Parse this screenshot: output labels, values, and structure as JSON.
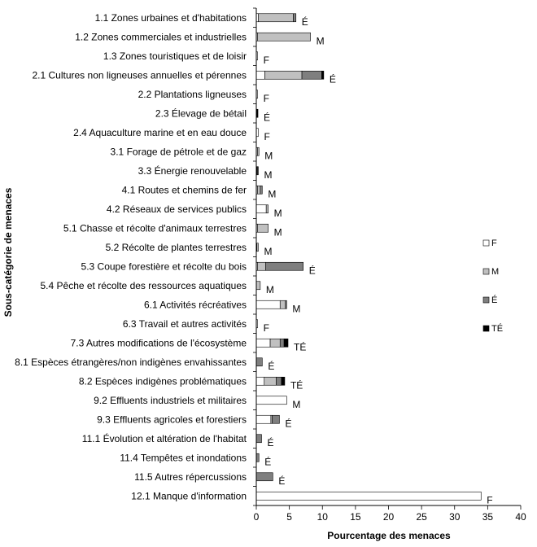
{
  "chart_data": {
    "type": "bar",
    "orientation": "horizontal",
    "stacked": true,
    "xlabel": "Pourcentage des menaces",
    "ylabel": "Sous-catégorie de menaces",
    "xlim": [
      0,
      40
    ],
    "xticks": [
      0,
      5,
      10,
      15,
      20,
      25,
      30,
      35,
      40
    ],
    "grid": false,
    "legend_position": "right",
    "series": [
      {
        "name": "F",
        "color": "#ffffff"
      },
      {
        "name": "M",
        "color": "#c0c0c0"
      },
      {
        "name": "É",
        "color": "#7f7f7f"
      },
      {
        "name": "TÉ",
        "color": "#000000"
      }
    ],
    "categories": [
      "1.1 Zones urbaines et d'habitations",
      "1.2 Zones commerciales et industrielles",
      "1.3 Zones touristiques et de loisir",
      "2.1 Cultures non ligneuses annuelles et pérennes",
      "2.2 Plantations ligneuses",
      "2.3 Élevage de bétail",
      "2.4 Aquaculture marine et en eau douce",
      "3.1 Forage de pétrole et de gaz",
      "3.3 Énergie renouvelable",
      "4.1 Routes et chemins de fer",
      "4.2 Réseaux de services publics",
      "5.1 Chasse et récolte d'animaux terrestres",
      "5.2 Récolte de plantes terrestres",
      "5.3 Coupe forestière et récolte du bois",
      "5.4 Pêche et récolte des ressources aquatiques",
      "6.1 Activités récréatives",
      "6.3 Travail et autres activités",
      "7.3 Autres modifications de l'écosystème",
      "8.1 Espèces étrangères/non indigènes envahissantes",
      "8.2 Espèces indigènes problématiques",
      "9.2 Effluents industriels et militaires",
      "9.3 Effluents agricoles et forestiers",
      "11.1 Évolution et altération de l'habitat",
      "11.4 Tempêtes et inondations",
      "11.5 Autres répercussions",
      "12.1 Manque d'information"
    ],
    "values": [
      [
        0.3,
        5.3,
        0.4,
        0
      ],
      [
        0.2,
        8.0,
        0,
        0
      ],
      [
        0.2,
        0,
        0,
        0
      ],
      [
        1.3,
        5.6,
        3.0,
        0.3
      ],
      [
        0.2,
        0,
        0,
        0
      ],
      [
        0,
        0,
        0,
        0.25
      ],
      [
        0.3,
        0,
        0,
        0
      ],
      [
        0.2,
        0.2,
        0,
        0
      ],
      [
        0.1,
        0.1,
        0,
        0.1
      ],
      [
        0.2,
        0.4,
        0.3,
        0
      ],
      [
        1.5,
        0.3,
        0,
        0
      ],
      [
        0.2,
        1.6,
        0,
        0
      ],
      [
        0.1,
        0.2,
        0,
        0
      ],
      [
        0.2,
        1.2,
        5.7,
        0
      ],
      [
        0,
        0.6,
        0,
        0
      ],
      [
        3.6,
        0.8,
        0.2,
        0
      ],
      [
        0.2,
        0,
        0,
        0
      ],
      [
        2.1,
        1.5,
        0.6,
        0.6
      ],
      [
        0,
        0,
        0.9,
        0
      ],
      [
        1.2,
        1.8,
        0.8,
        0.5
      ],
      [
        4.6,
        0,
        0,
        0
      ],
      [
        2.2,
        0.2,
        1.1,
        0
      ],
      [
        0,
        0,
        0.8,
        0
      ],
      [
        0,
        0,
        0.4,
        0
      ],
      [
        0,
        0,
        2.5,
        0
      ],
      [
        34.0,
        0,
        0,
        0
      ]
    ],
    "end_labels": [
      "É",
      "M",
      "F",
      "É",
      "F",
      "É",
      "F",
      "M",
      "M",
      "M",
      "M",
      "M",
      "M",
      "É",
      "M",
      "M",
      "F",
      "TÉ",
      "É",
      "TÉ",
      "M",
      "É",
      "É",
      "É",
      "É",
      "F"
    ]
  }
}
